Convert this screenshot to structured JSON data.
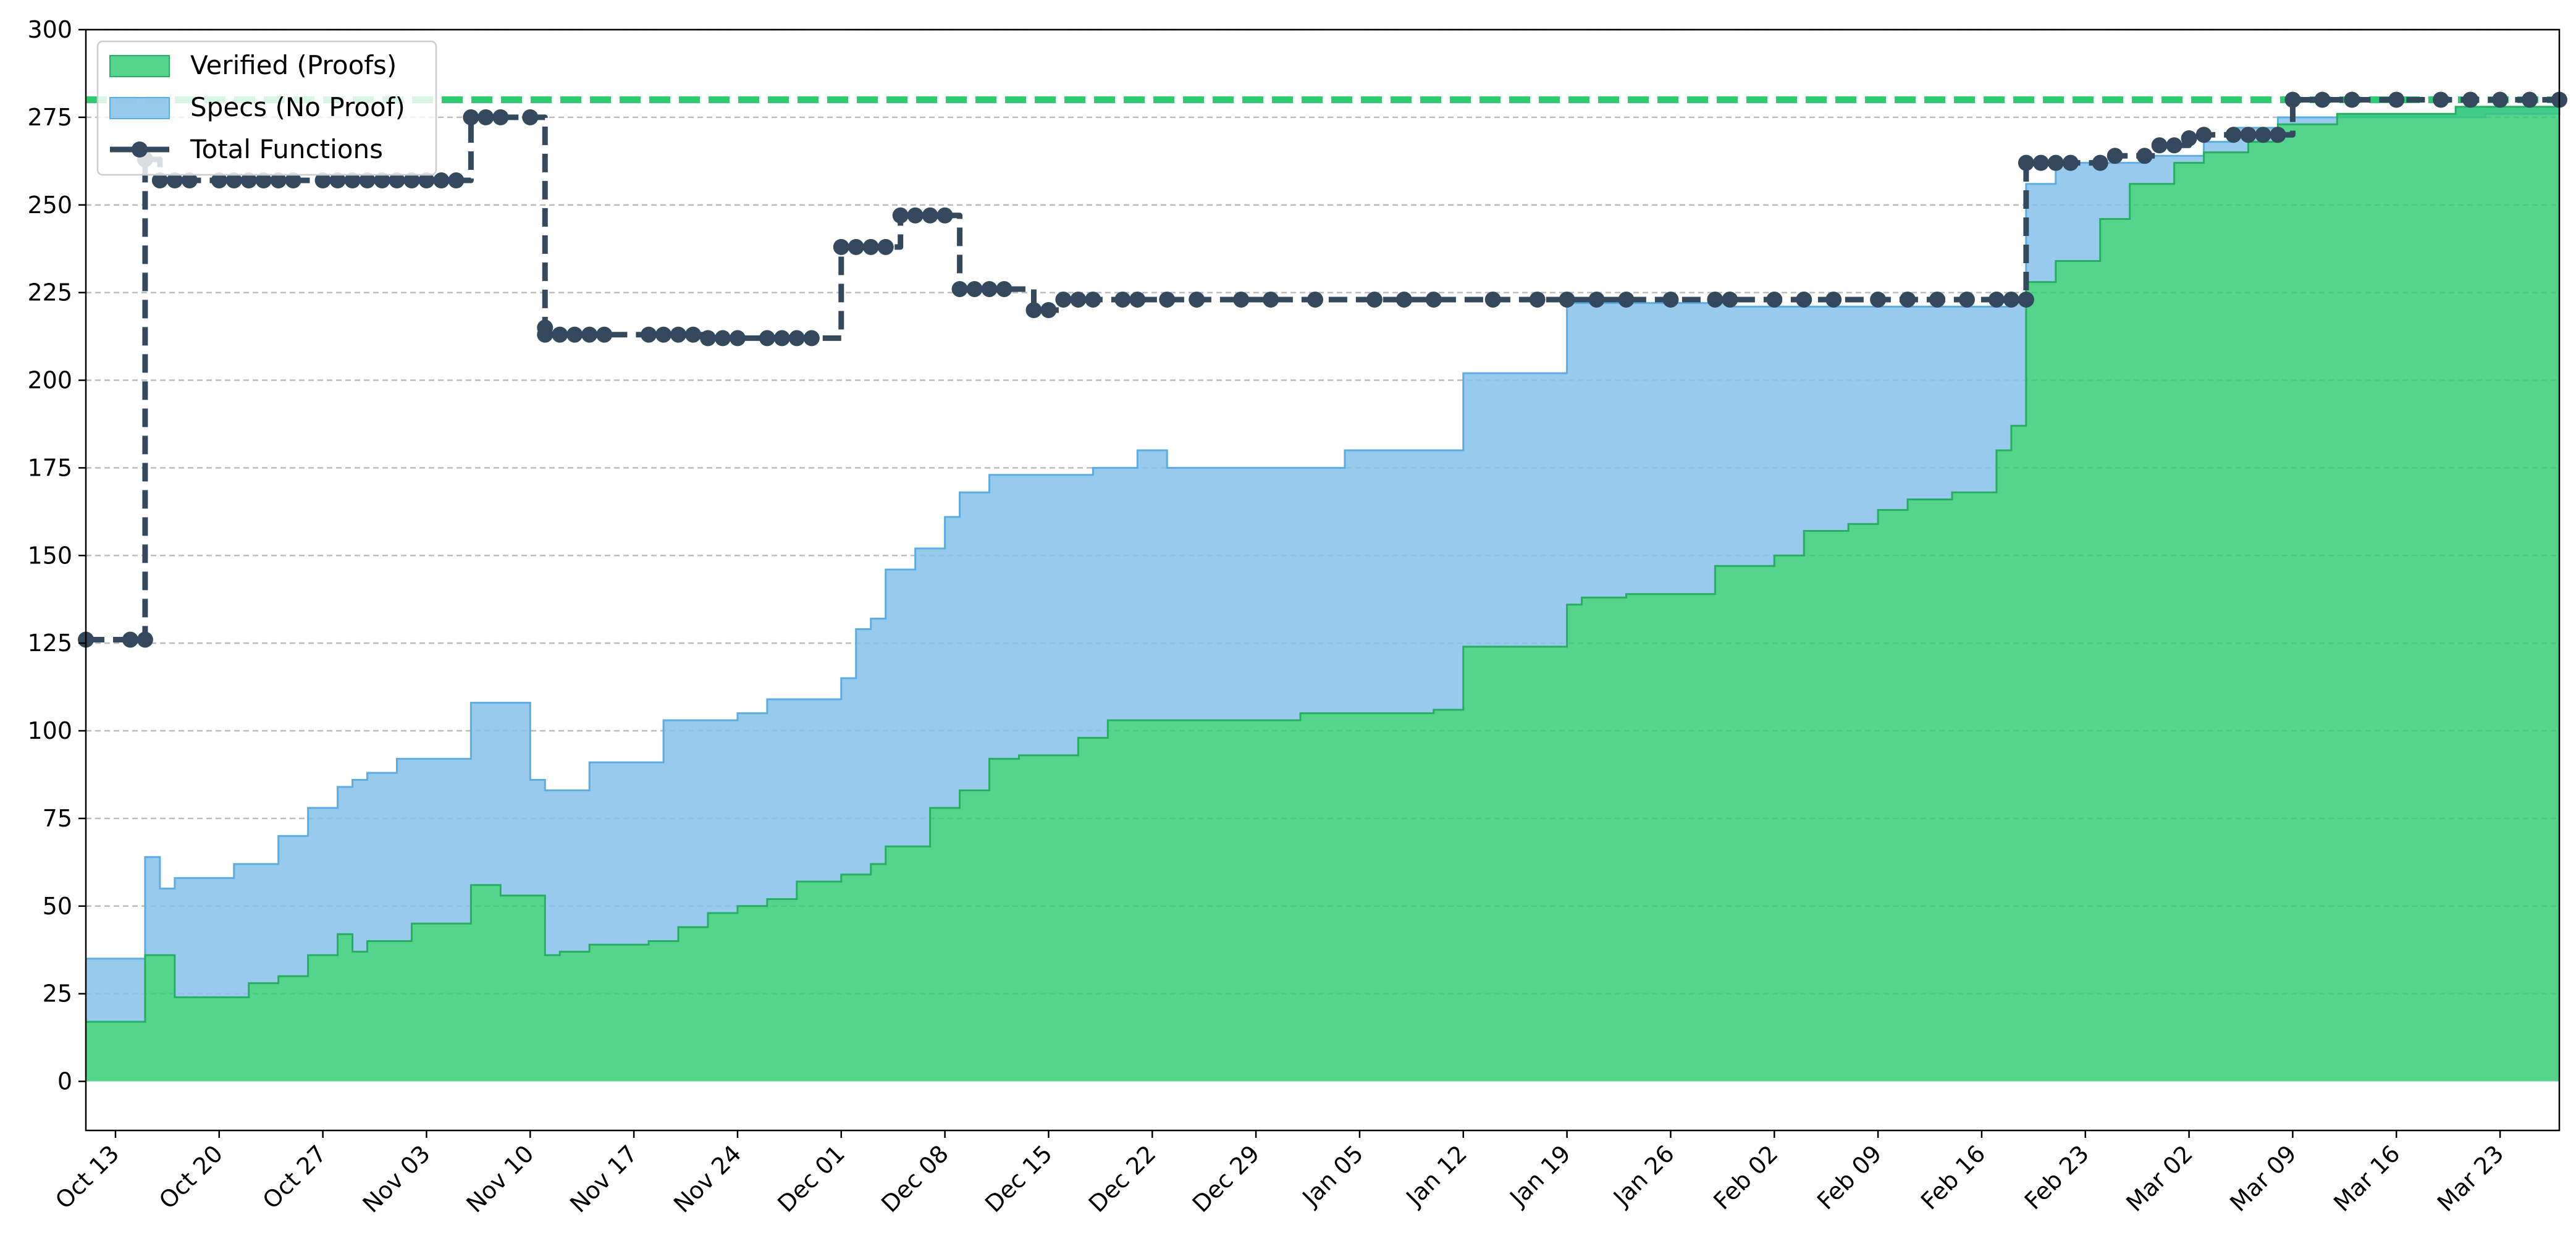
{
  "chart_data": {
    "type": "area",
    "title": "",
    "xlabel": "",
    "ylabel": "",
    "x_range": [
      "2025-10-11",
      "2026-03-27"
    ],
    "ylim": [
      -14,
      300
    ],
    "y_ticks": [
      0,
      25,
      50,
      75,
      100,
      125,
      150,
      175,
      200,
      225,
      250,
      275,
      300
    ],
    "y_tick_labels": [
      "0",
      "25",
      "50",
      "75",
      "100",
      "125",
      "150",
      "175",
      "200",
      "225",
      "250",
      "275",
      "300"
    ],
    "x_ticks": [
      "2025-10-13",
      "2025-10-20",
      "2025-10-27",
      "2025-11-03",
      "2025-11-10",
      "2025-11-17",
      "2025-11-24",
      "2025-12-01",
      "2025-12-08",
      "2025-12-15",
      "2025-12-22",
      "2025-12-29",
      "2026-01-05",
      "2026-01-12",
      "2026-01-19",
      "2026-01-26",
      "2026-02-02",
      "2026-02-09",
      "2026-02-16",
      "2026-02-23",
      "2026-03-02",
      "2026-03-09",
      "2026-03-16",
      "2026-03-23"
    ],
    "x_tick_labels": [
      "Oct 13",
      "Oct 20",
      "Oct 27",
      "Nov 03",
      "Nov 10",
      "Nov 17",
      "Nov 24",
      "Dec 01",
      "Dec 08",
      "Dec 15",
      "Dec 22",
      "Dec 29",
      "Jan 05",
      "Jan 12",
      "Jan 19",
      "Jan 26",
      "Feb 02",
      "Feb 09",
      "Feb 16",
      "Feb 23",
      "Mar 02",
      "Mar 09",
      "Mar 16",
      "Mar 23"
    ],
    "grid": "horizontal-dashed",
    "legend_position": "top-left",
    "reference_line": {
      "y": 280,
      "style": "dashed",
      "color": "#2ecc71"
    },
    "colors": {
      "verified": "#2ecc71",
      "verified_edge": "#27ae60",
      "specs": "#85c1e9",
      "specs_edge": "#5dade2",
      "total": "#34495e"
    },
    "series": [
      {
        "name": "Verified (Proofs)",
        "kind": "stacked-area",
        "x": [
          "2025-10-11",
          "2025-10-15",
          "2025-10-15",
          "2025-10-17",
          "2025-10-21",
          "2025-10-22",
          "2025-10-24",
          "2025-10-26",
          "2025-10-28",
          "2025-10-29",
          "2025-10-30",
          "2025-11-02",
          "2025-11-04",
          "2025-11-06",
          "2025-11-08",
          "2025-11-10",
          "2025-11-11",
          "2025-11-12",
          "2025-11-14",
          "2025-11-16",
          "2025-11-18",
          "2025-11-20",
          "2025-11-22",
          "2025-11-24",
          "2025-11-26",
          "2025-11-28",
          "2025-12-01",
          "2025-12-03",
          "2025-12-04",
          "2025-12-07",
          "2025-12-09",
          "2025-12-11",
          "2025-12-13",
          "2025-12-17",
          "2025-12-19",
          "2025-12-25",
          "2026-01-01",
          "2026-01-10",
          "2026-01-12",
          "2026-01-19",
          "2026-01-20",
          "2026-01-23",
          "2026-01-26",
          "2026-01-29",
          "2026-02-02",
          "2026-02-04",
          "2026-02-07",
          "2026-02-09",
          "2026-02-11",
          "2026-02-14",
          "2026-02-17",
          "2026-02-18",
          "2026-02-19",
          "2026-02-21",
          "2026-02-24",
          "2026-02-26",
          "2026-03-01",
          "2026-03-03",
          "2026-03-06",
          "2026-03-08",
          "2026-03-12",
          "2026-03-20",
          "2026-03-27"
        ],
        "values": [
          17,
          17,
          36,
          24,
          24,
          28,
          30,
          36,
          42,
          37,
          40,
          45,
          45,
          56,
          53,
          53,
          36,
          37,
          39,
          39,
          40,
          44,
          48,
          50,
          52,
          57,
          59,
          62,
          67,
          78,
          83,
          92,
          93,
          98,
          103,
          103,
          105,
          106,
          124,
          136,
          138,
          139,
          139,
          147,
          150,
          157,
          159,
          163,
          166,
          168,
          180,
          187,
          228,
          234,
          246,
          256,
          262,
          265,
          268,
          273,
          276,
          278,
          280
        ]
      },
      {
        "name": "Specs (No Proof)",
        "kind": "stacked-area-top",
        "x": [
          "2025-10-11",
          "2025-10-15",
          "2025-10-15",
          "2025-10-16",
          "2025-10-17",
          "2025-10-21",
          "2025-10-24",
          "2025-10-26",
          "2025-10-28",
          "2025-10-29",
          "2025-10-30",
          "2025-11-01",
          "2025-11-06",
          "2025-11-10",
          "2025-11-11",
          "2025-11-14",
          "2025-11-19",
          "2025-11-24",
          "2025-11-26",
          "2025-12-01",
          "2025-12-02",
          "2025-12-03",
          "2025-12-04",
          "2025-12-06",
          "2025-12-08",
          "2025-12-09",
          "2025-12-11",
          "2025-12-18",
          "2025-12-21",
          "2025-12-23",
          "2025-12-31",
          "2026-01-04",
          "2026-01-12",
          "2026-01-19",
          "2026-01-20",
          "2026-01-25",
          "2026-01-30",
          "2026-02-09",
          "2026-02-18",
          "2026-02-19",
          "2026-02-21",
          "2026-02-24",
          "2026-02-27",
          "2026-03-03",
          "2026-03-05",
          "2026-03-08",
          "2026-03-12",
          "2026-03-22",
          "2026-03-27"
        ],
        "values": [
          35,
          35,
          64,
          55,
          58,
          62,
          70,
          78,
          84,
          86,
          88,
          92,
          108,
          86,
          83,
          91,
          103,
          105,
          109,
          115,
          129,
          132,
          146,
          152,
          161,
          168,
          173,
          175,
          180,
          175,
          175,
          180,
          202,
          222,
          222,
          222,
          221,
          221,
          222,
          256,
          262,
          262,
          264,
          268,
          272,
          275,
          275,
          276,
          280
        ]
      },
      {
        "name": "Total Functions",
        "kind": "step-line-markers",
        "x": [
          "2025-10-11",
          "2025-10-14",
          "2025-10-15",
          "2025-10-15",
          "2025-10-16",
          "2025-10-17",
          "2025-10-18",
          "2025-10-20",
          "2025-10-21",
          "2025-10-22",
          "2025-10-23",
          "2025-10-24",
          "2025-10-25",
          "2025-10-27",
          "2025-10-28",
          "2025-10-29",
          "2025-10-30",
          "2025-10-31",
          "2025-11-01",
          "2025-11-02",
          "2025-11-03",
          "2025-11-04",
          "2025-11-05",
          "2025-11-06",
          "2025-11-07",
          "2025-11-08",
          "2025-11-10",
          "2025-11-11",
          "2025-11-11",
          "2025-11-12",
          "2025-11-13",
          "2025-11-14",
          "2025-11-15",
          "2025-11-18",
          "2025-11-19",
          "2025-11-20",
          "2025-11-21",
          "2025-11-22",
          "2025-11-23",
          "2025-11-24",
          "2025-11-26",
          "2025-11-27",
          "2025-11-28",
          "2025-11-29",
          "2025-12-01",
          "2025-12-02",
          "2025-12-03",
          "2025-12-04",
          "2025-12-05",
          "2025-12-06",
          "2025-12-07",
          "2025-12-08",
          "2025-12-09",
          "2025-12-10",
          "2025-12-11",
          "2025-12-12",
          "2025-12-14",
          "2025-12-15",
          "2025-12-16",
          "2025-12-17",
          "2025-12-18",
          "2025-12-20",
          "2025-12-21",
          "2025-12-23",
          "2025-12-25",
          "2025-12-28",
          "2025-12-30",
          "2026-01-02",
          "2026-01-06",
          "2026-01-08",
          "2026-01-10",
          "2026-01-14",
          "2026-01-17",
          "2026-01-19",
          "2026-01-21",
          "2026-01-23",
          "2026-01-26",
          "2026-01-29",
          "2026-01-30",
          "2026-02-02",
          "2026-02-04",
          "2026-02-06",
          "2026-02-09",
          "2026-02-11",
          "2026-02-13",
          "2026-02-15",
          "2026-02-17",
          "2026-02-18",
          "2026-02-19",
          "2026-02-19",
          "2026-02-20",
          "2026-02-21",
          "2026-02-22",
          "2026-02-24",
          "2026-02-25",
          "2026-02-27",
          "2026-02-28",
          "2026-03-01",
          "2026-03-02",
          "2026-03-03",
          "2026-03-05",
          "2026-03-06",
          "2026-03-07",
          "2026-03-08",
          "2026-03-09",
          "2026-03-11",
          "2026-03-13",
          "2026-03-16",
          "2026-03-19",
          "2026-03-21",
          "2026-03-23",
          "2026-03-25",
          "2026-03-27"
        ],
        "values": [
          126,
          126,
          126,
          263,
          257,
          257,
          257,
          257,
          257,
          257,
          257,
          257,
          257,
          257,
          257,
          257,
          257,
          257,
          257,
          257,
          257,
          257,
          257,
          275,
          275,
          275,
          275,
          215,
          213,
          213,
          213,
          213,
          213,
          213,
          213,
          213,
          213,
          212,
          212,
          212,
          212,
          212,
          212,
          212,
          238,
          238,
          238,
          238,
          247,
          247,
          247,
          247,
          226,
          226,
          226,
          226,
          220,
          220,
          223,
          223,
          223,
          223,
          223,
          223,
          223,
          223,
          223,
          223,
          223,
          223,
          223,
          223,
          223,
          223,
          223,
          223,
          223,
          223,
          223,
          223,
          223,
          223,
          223,
          223,
          223,
          223,
          223,
          223,
          223,
          262,
          262,
          262,
          262,
          262,
          264,
          264,
          267,
          267,
          269,
          270,
          270,
          270,
          270,
          270,
          280,
          280,
          280,
          280,
          280,
          280,
          280,
          280,
          280
        ]
      }
    ]
  }
}
